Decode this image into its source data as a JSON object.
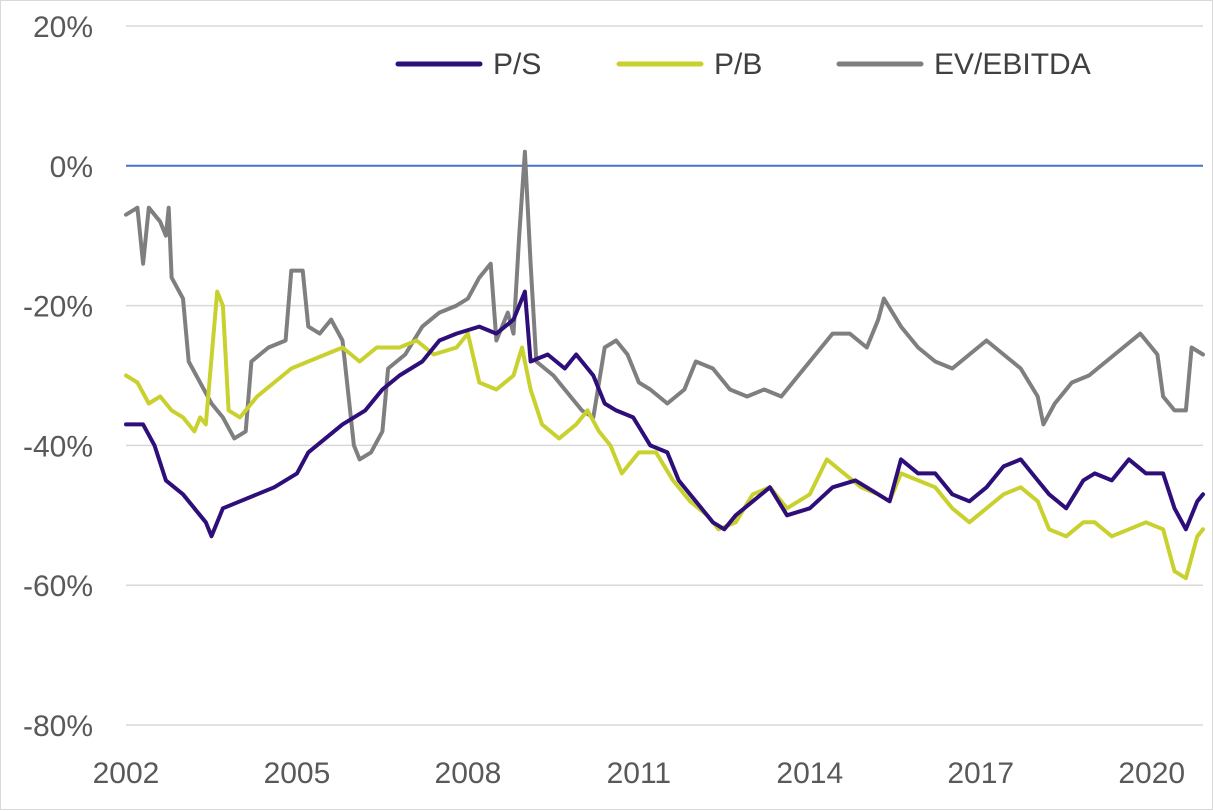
{
  "chart_data": {
    "type": "line",
    "title": "",
    "xlabel": "",
    "ylabel": "",
    "x_range": [
      2002.0,
      2020.9
    ],
    "ylim": [
      -80,
      20
    ],
    "y_ticks": [
      20,
      0,
      -20,
      -40,
      -60,
      -80
    ],
    "y_tick_labels": [
      "20%",
      "0%",
      "-20%",
      "-40%",
      "-60%",
      "-80%"
    ],
    "x_ticks": [
      2002,
      2005,
      2008,
      2011,
      2014,
      2017,
      2020
    ],
    "x_tick_labels": [
      "2002",
      "2005",
      "2008",
      "2011",
      "2014",
      "2017",
      "2020"
    ],
    "grid": true,
    "reference_line": {
      "y": 0,
      "color": "#4472c4"
    },
    "legend_position": "top",
    "series": [
      {
        "name": "P/S",
        "color": "#2e0f7a",
        "points": [
          [
            2002.0,
            -37
          ],
          [
            2002.3,
            -37
          ],
          [
            2002.5,
            -40
          ],
          [
            2002.7,
            -45
          ],
          [
            2003.0,
            -47
          ],
          [
            2003.2,
            -49
          ],
          [
            2003.4,
            -51
          ],
          [
            2003.5,
            -53
          ],
          [
            2003.7,
            -49
          ],
          [
            2004.0,
            -48
          ],
          [
            2004.3,
            -47
          ],
          [
            2004.6,
            -46
          ],
          [
            2005.0,
            -44
          ],
          [
            2005.2,
            -41
          ],
          [
            2005.5,
            -39
          ],
          [
            2005.8,
            -37
          ],
          [
            2006.2,
            -35
          ],
          [
            2006.5,
            -32
          ],
          [
            2006.8,
            -30
          ],
          [
            2007.2,
            -28
          ],
          [
            2007.5,
            -25
          ],
          [
            2007.8,
            -24
          ],
          [
            2008.2,
            -23
          ],
          [
            2008.5,
            -24
          ],
          [
            2008.8,
            -22
          ],
          [
            2009.0,
            -18
          ],
          [
            2009.1,
            -28
          ],
          [
            2009.4,
            -27
          ],
          [
            2009.7,
            -29
          ],
          [
            2009.9,
            -27
          ],
          [
            2010.2,
            -30
          ],
          [
            2010.4,
            -34
          ],
          [
            2010.6,
            -35
          ],
          [
            2010.9,
            -36
          ],
          [
            2011.2,
            -40
          ],
          [
            2011.5,
            -41
          ],
          [
            2011.7,
            -45
          ],
          [
            2012.0,
            -48
          ],
          [
            2012.3,
            -51
          ],
          [
            2012.5,
            -52
          ],
          [
            2012.7,
            -50
          ],
          [
            2013.0,
            -48
          ],
          [
            2013.3,
            -46
          ],
          [
            2013.6,
            -50
          ],
          [
            2014.0,
            -49
          ],
          [
            2014.4,
            -46
          ],
          [
            2014.8,
            -45
          ],
          [
            2015.2,
            -47
          ],
          [
            2015.4,
            -48
          ],
          [
            2015.6,
            -42
          ],
          [
            2015.9,
            -44
          ],
          [
            2016.2,
            -44
          ],
          [
            2016.5,
            -47
          ],
          [
            2016.8,
            -48
          ],
          [
            2017.1,
            -46
          ],
          [
            2017.4,
            -43
          ],
          [
            2017.7,
            -42
          ],
          [
            2018.0,
            -45
          ],
          [
            2018.2,
            -47
          ],
          [
            2018.5,
            -49
          ],
          [
            2018.8,
            -45
          ],
          [
            2019.0,
            -44
          ],
          [
            2019.3,
            -45
          ],
          [
            2019.6,
            -42
          ],
          [
            2019.9,
            -44
          ],
          [
            2020.2,
            -44
          ],
          [
            2020.4,
            -49
          ],
          [
            2020.6,
            -52
          ],
          [
            2020.8,
            -48
          ],
          [
            2020.9,
            -47
          ]
        ]
      },
      {
        "name": "P/B",
        "color": "#c9d12f",
        "points": [
          [
            2002.0,
            -30
          ],
          [
            2002.2,
            -31
          ],
          [
            2002.4,
            -34
          ],
          [
            2002.6,
            -33
          ],
          [
            2002.8,
            -35
          ],
          [
            2003.0,
            -36
          ],
          [
            2003.2,
            -38
          ],
          [
            2003.3,
            -36
          ],
          [
            2003.4,
            -37
          ],
          [
            2003.6,
            -18
          ],
          [
            2003.7,
            -20
          ],
          [
            2003.8,
            -35
          ],
          [
            2004.0,
            -36
          ],
          [
            2004.3,
            -33
          ],
          [
            2004.6,
            -31
          ],
          [
            2004.9,
            -29
          ],
          [
            2005.2,
            -28
          ],
          [
            2005.5,
            -27
          ],
          [
            2005.8,
            -26
          ],
          [
            2006.1,
            -28
          ],
          [
            2006.4,
            -26
          ],
          [
            2006.8,
            -26
          ],
          [
            2007.1,
            -25
          ],
          [
            2007.4,
            -27
          ],
          [
            2007.8,
            -26
          ],
          [
            2008.0,
            -24
          ],
          [
            2008.2,
            -31
          ],
          [
            2008.5,
            -32
          ],
          [
            2008.8,
            -30
          ],
          [
            2008.95,
            -26
          ],
          [
            2009.1,
            -32
          ],
          [
            2009.3,
            -37
          ],
          [
            2009.6,
            -39
          ],
          [
            2009.9,
            -37
          ],
          [
            2010.1,
            -35
          ],
          [
            2010.3,
            -38
          ],
          [
            2010.5,
            -40
          ],
          [
            2010.7,
            -44
          ],
          [
            2011.0,
            -41
          ],
          [
            2011.3,
            -41
          ],
          [
            2011.6,
            -45
          ],
          [
            2011.9,
            -48
          ],
          [
            2012.2,
            -50
          ],
          [
            2012.4,
            -52
          ],
          [
            2012.7,
            -51
          ],
          [
            2013.0,
            -47
          ],
          [
            2013.3,
            -46
          ],
          [
            2013.6,
            -49
          ],
          [
            2014.0,
            -47
          ],
          [
            2014.3,
            -42
          ],
          [
            2014.6,
            -44
          ],
          [
            2014.9,
            -46
          ],
          [
            2015.2,
            -47
          ],
          [
            2015.4,
            -48
          ],
          [
            2015.6,
            -44
          ],
          [
            2015.9,
            -45
          ],
          [
            2016.2,
            -46
          ],
          [
            2016.5,
            -49
          ],
          [
            2016.8,
            -51
          ],
          [
            2017.1,
            -49
          ],
          [
            2017.4,
            -47
          ],
          [
            2017.7,
            -46
          ],
          [
            2018.0,
            -48
          ],
          [
            2018.2,
            -52
          ],
          [
            2018.5,
            -53
          ],
          [
            2018.8,
            -51
          ],
          [
            2019.0,
            -51
          ],
          [
            2019.3,
            -53
          ],
          [
            2019.6,
            -52
          ],
          [
            2019.9,
            -51
          ],
          [
            2020.2,
            -52
          ],
          [
            2020.4,
            -58
          ],
          [
            2020.6,
            -59
          ],
          [
            2020.8,
            -53
          ],
          [
            2020.9,
            -52
          ]
        ]
      },
      {
        "name": "EV/EBITDA",
        "color": "#7f7f7f",
        "points": [
          [
            2002.0,
            -7
          ],
          [
            2002.2,
            -6
          ],
          [
            2002.3,
            -14
          ],
          [
            2002.4,
            -6
          ],
          [
            2002.6,
            -8
          ],
          [
            2002.7,
            -10
          ],
          [
            2002.75,
            -6
          ],
          [
            2002.8,
            -16
          ],
          [
            2003.0,
            -19
          ],
          [
            2003.1,
            -28
          ],
          [
            2003.3,
            -31
          ],
          [
            2003.5,
            -34
          ],
          [
            2003.7,
            -36
          ],
          [
            2003.9,
            -39
          ],
          [
            2004.1,
            -38
          ],
          [
            2004.2,
            -28
          ],
          [
            2004.5,
            -26
          ],
          [
            2004.8,
            -25
          ],
          [
            2004.9,
            -15
          ],
          [
            2005.1,
            -15
          ],
          [
            2005.2,
            -23
          ],
          [
            2005.4,
            -24
          ],
          [
            2005.6,
            -22
          ],
          [
            2005.8,
            -25
          ],
          [
            2006.0,
            -40
          ],
          [
            2006.1,
            -42
          ],
          [
            2006.3,
            -41
          ],
          [
            2006.5,
            -38
          ],
          [
            2006.6,
            -29
          ],
          [
            2006.9,
            -27
          ],
          [
            2007.2,
            -23
          ],
          [
            2007.5,
            -21
          ],
          [
            2007.8,
            -20
          ],
          [
            2008.0,
            -19
          ],
          [
            2008.2,
            -16
          ],
          [
            2008.4,
            -14
          ],
          [
            2008.5,
            -25
          ],
          [
            2008.7,
            -21
          ],
          [
            2008.8,
            -24
          ],
          [
            2008.9,
            -10
          ],
          [
            2009.0,
            2
          ],
          [
            2009.1,
            -14
          ],
          [
            2009.2,
            -28
          ],
          [
            2009.5,
            -30
          ],
          [
            2009.8,
            -33
          ],
          [
            2010.0,
            -35
          ],
          [
            2010.2,
            -36
          ],
          [
            2010.4,
            -26
          ],
          [
            2010.6,
            -25
          ],
          [
            2010.8,
            -27
          ],
          [
            2011.0,
            -31
          ],
          [
            2011.2,
            -32
          ],
          [
            2011.5,
            -34
          ],
          [
            2011.8,
            -32
          ],
          [
            2012.0,
            -28
          ],
          [
            2012.3,
            -29
          ],
          [
            2012.6,
            -32
          ],
          [
            2012.9,
            -33
          ],
          [
            2013.2,
            -32
          ],
          [
            2013.5,
            -33
          ],
          [
            2013.8,
            -30
          ],
          [
            2014.1,
            -27
          ],
          [
            2014.4,
            -24
          ],
          [
            2014.7,
            -24
          ],
          [
            2015.0,
            -26
          ],
          [
            2015.2,
            -22
          ],
          [
            2015.3,
            -19
          ],
          [
            2015.6,
            -23
          ],
          [
            2015.9,
            -26
          ],
          [
            2016.2,
            -28
          ],
          [
            2016.5,
            -29
          ],
          [
            2016.8,
            -27
          ],
          [
            2017.1,
            -25
          ],
          [
            2017.4,
            -27
          ],
          [
            2017.7,
            -29
          ],
          [
            2018.0,
            -33
          ],
          [
            2018.1,
            -37
          ],
          [
            2018.3,
            -34
          ],
          [
            2018.6,
            -31
          ],
          [
            2018.9,
            -30
          ],
          [
            2019.2,
            -28
          ],
          [
            2019.5,
            -26
          ],
          [
            2019.8,
            -24
          ],
          [
            2020.1,
            -27
          ],
          [
            2020.2,
            -33
          ],
          [
            2020.4,
            -35
          ],
          [
            2020.6,
            -35
          ],
          [
            2020.7,
            -26
          ],
          [
            2020.9,
            -27
          ]
        ]
      }
    ]
  }
}
